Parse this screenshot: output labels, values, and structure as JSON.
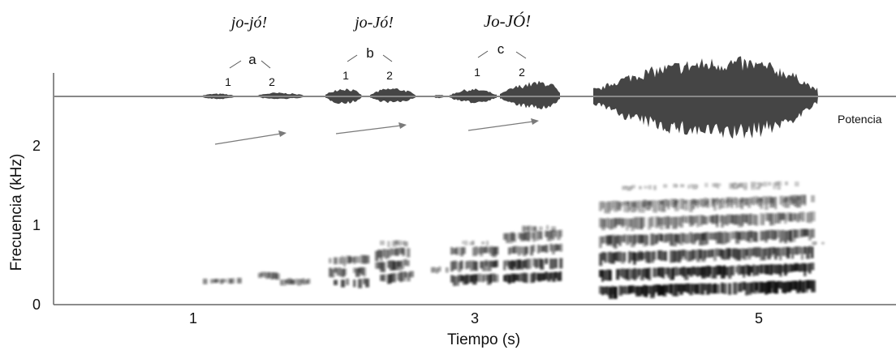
{
  "figure": {
    "y_axis_label": "Frecuencia (kHz)",
    "x_axis_label": "Tiempo (s)",
    "y_ticks": [
      "0",
      "1",
      "2"
    ],
    "x_ticks": [
      "1",
      "3",
      "5"
    ],
    "waveform_label": "Potencia",
    "colors": {
      "waveform": "#454545",
      "spectrogram": "#111111",
      "axis": "#555555",
      "arrow": "#7a7a7a"
    }
  },
  "groups": [
    {
      "phrase": "jo-jó!",
      "letter": "a",
      "syll1": "1",
      "syll2": "2"
    },
    {
      "phrase": "jo-Jó!",
      "letter": "b",
      "syll1": "1",
      "syll2": "2"
    },
    {
      "phrase": "Jo-JÓ!",
      "letter": "c",
      "syll1": "1",
      "syll2": "2"
    }
  ]
}
